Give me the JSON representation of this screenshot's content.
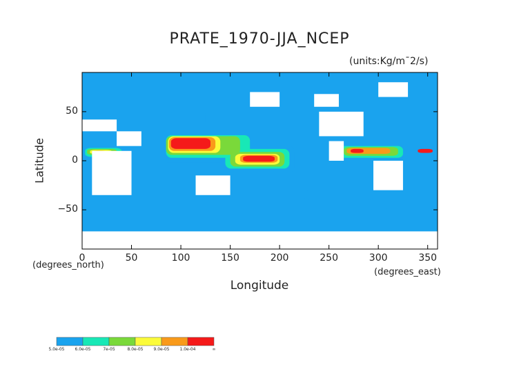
{
  "chart_data": {
    "type": "heatmap",
    "title": "PRATE_1970-JJA_NCEP",
    "units_label": "(units:Kg/m¯2/s)",
    "xlabel": "Longitude",
    "ylabel": "Latitude",
    "x_unit_label": "(degrees_east)",
    "y_unit_label": "(degrees_north)",
    "xlim": [
      0,
      360
    ],
    "ylim": [
      -90,
      90
    ],
    "x_ticks": [
      0,
      50,
      100,
      150,
      200,
      250,
      300,
      350
    ],
    "x_tick_labels": [
      "0",
      "50",
      "100",
      "150",
      "200",
      "250",
      "300",
      "350"
    ],
    "y_ticks": [
      50,
      0,
      -50
    ],
    "y_tick_labels": [
      "50",
      "0",
      "−50"
    ],
    "colorbar": {
      "labels": [
        "5.0e-05",
        "6.0e-05",
        "7e-05",
        "8.0e-05",
        "9.0e-05",
        "1.0e-04",
        "∞"
      ],
      "colors": [
        "#1aa3ee",
        "#18e8b6",
        "#7ad93a",
        "#fbfb3a",
        "#f99a1a",
        "#f51a1a"
      ]
    },
    "precipitation_zones": [
      {
        "level": 0,
        "lon": [
          80,
          175
        ],
        "lat": [
          -2,
          30
        ]
      },
      {
        "level": 0,
        "lon": [
          140,
          215
        ],
        "lat": [
          -12,
          15
        ]
      },
      {
        "level": 0,
        "lon": [
          0,
          45
        ],
        "lat": [
          2,
          16
        ]
      },
      {
        "level": 0,
        "lon": [
          255,
          330
        ],
        "lat": [
          0,
          18
        ]
      },
      {
        "level": 0,
        "lon": [
          290,
          310
        ],
        "lat": [
          -50,
          -35
        ]
      },
      {
        "level": 0,
        "lon": [
          225,
          295
        ],
        "lat": [
          -40,
          -30
        ]
      },
      {
        "level": 0,
        "lon": [
          90,
          125
        ],
        "lat": [
          35,
          52
        ]
      },
      {
        "level": 1,
        "lon": [
          85,
          170
        ],
        "lat": [
          3,
          26
        ]
      },
      {
        "level": 1,
        "lon": [
          145,
          210
        ],
        "lat": [
          -8,
          12
        ]
      },
      {
        "level": 1,
        "lon": [
          3,
          40
        ],
        "lat": [
          4,
          13
        ]
      },
      {
        "level": 1,
        "lon": [
          260,
          325
        ],
        "lat": [
          3,
          15
        ]
      },
      {
        "level": 2,
        "lon": [
          85,
          160
        ],
        "lat": [
          6,
          25
        ]
      },
      {
        "level": 2,
        "lon": [
          150,
          205
        ],
        "lat": [
          -6,
          9
        ]
      },
      {
        "level": 2,
        "lon": [
          5,
          35
        ],
        "lat": [
          6,
          12
        ]
      },
      {
        "level": 2,
        "lon": [
          265,
          320
        ],
        "lat": [
          5,
          14
        ]
      },
      {
        "level": 3,
        "lon": [
          87,
          140
        ],
        "lat": [
          8,
          25
        ]
      },
      {
        "level": 3,
        "lon": [
          155,
          200
        ],
        "lat": [
          -4,
          7
        ]
      },
      {
        "level": 3,
        "lon": [
          8,
          30
        ],
        "lat": [
          7,
          11
        ]
      },
      {
        "level": 4,
        "lon": [
          88,
          135
        ],
        "lat": [
          10,
          24
        ]
      },
      {
        "level": 4,
        "lon": [
          160,
          198
        ],
        "lat": [
          -2,
          6
        ]
      },
      {
        "level": 4,
        "lon": [
          268,
          312
        ],
        "lat": [
          7,
          13
        ]
      },
      {
        "level": 5,
        "lon": [
          90,
          130
        ],
        "lat": [
          12,
          23
        ]
      },
      {
        "level": 5,
        "lon": [
          163,
          195
        ],
        "lat": [
          -1,
          5
        ]
      },
      {
        "level": 5,
        "lon": [
          10,
          25
        ],
        "lat": [
          8,
          10
        ]
      },
      {
        "level": 5,
        "lon": [
          272,
          285
        ],
        "lat": [
          8,
          12
        ]
      },
      {
        "level": 5,
        "lon": [
          340,
          355
        ],
        "lat": [
          8,
          12
        ]
      }
    ],
    "no_data_regions": [
      {
        "lon": [
          10,
          50
        ],
        "lat": [
          -35,
          10
        ]
      },
      {
        "lon": [
          35,
          60
        ],
        "lat": [
          15,
          30
        ]
      },
      {
        "lon": [
          0,
          35
        ],
        "lat": [
          30,
          42
        ]
      },
      {
        "lon": [
          115,
          150
        ],
        "lat": [
          -35,
          -15
        ]
      },
      {
        "lon": [
          240,
          285
        ],
        "lat": [
          25,
          50
        ]
      },
      {
        "lon": [
          235,
          260
        ],
        "lat": [
          55,
          68
        ]
      },
      {
        "lon": [
          250,
          265
        ],
        "lat": [
          0,
          20
        ]
      },
      {
        "lon": [
          295,
          325
        ],
        "lat": [
          -30,
          0
        ]
      },
      {
        "lon": [
          300,
          330
        ],
        "lat": [
          65,
          80
        ]
      },
      {
        "lon": [
          0,
          360
        ],
        "lat": [
          -90,
          -72
        ]
      },
      {
        "lon": [
          170,
          200
        ],
        "lat": [
          55,
          70
        ]
      }
    ]
  }
}
